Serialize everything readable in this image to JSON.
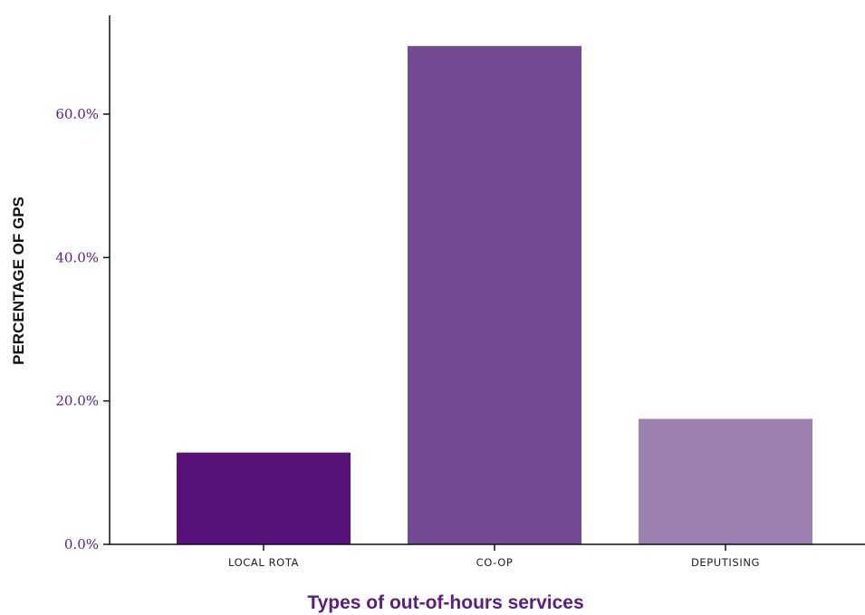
{
  "chart_data": {
    "type": "bar",
    "categories": [
      "LOCAL ROTA",
      "CO-OP",
      "DEPUTISING"
    ],
    "values": [
      12.8,
      69.5,
      17.5
    ],
    "colors": [
      "#561278",
      "#744a93",
      "#9c80b1"
    ],
    "yticks": [
      0,
      20,
      40,
      60
    ],
    "ytick_labels": [
      "0.0%",
      "20.0%",
      "40.0%",
      "60.0%"
    ],
    "ylim": [
      0,
      75
    ],
    "ylabel": "PERCENTAGE OF GPS",
    "xlabel": "Types of out-of-hours services",
    "grid": false
  }
}
